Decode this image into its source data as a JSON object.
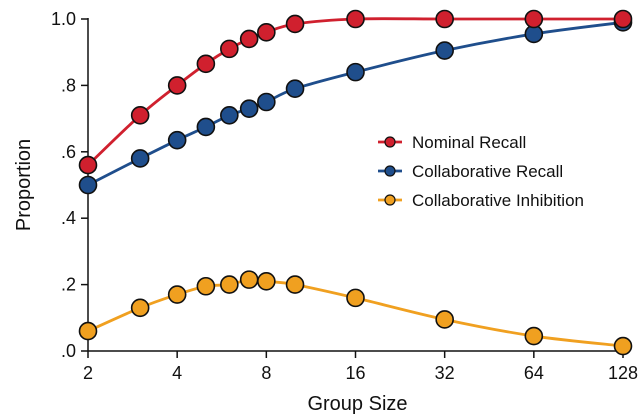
{
  "chart_data": {
    "type": "line",
    "xlabel": "Group Size",
    "ylabel": "Proportion",
    "x_scale": "log2",
    "xlim": [
      2,
      128
    ],
    "ylim": [
      0,
      1
    ],
    "x_ticks": [
      2,
      4,
      8,
      16,
      32,
      64,
      128
    ],
    "x_tick_labels": [
      "2",
      "4",
      "8",
      "16",
      "32",
      "64",
      "128"
    ],
    "y_ticks": [
      0,
      0.2,
      0.4,
      0.6,
      0.8,
      1.0
    ],
    "y_tick_labels": [
      ".0",
      ".2",
      ".4",
      ".6",
      ".8",
      "1.0"
    ],
    "grid": false,
    "legend_position": "center-right",
    "series": [
      {
        "name": "Nominal Recall",
        "color": "#d0202e",
        "marker_fill": "#d0202e",
        "x": [
          2,
          3,
          4,
          5,
          6,
          7,
          8,
          10,
          16,
          32,
          64,
          128
        ],
        "y": [
          0.56,
          0.71,
          0.8,
          0.865,
          0.91,
          0.94,
          0.96,
          0.985,
          1.0,
          1.0,
          1.0,
          1.0
        ]
      },
      {
        "name": "Collaborative Recall",
        "color": "#1f4e8c",
        "marker_fill": "#1f4e8c",
        "x": [
          2,
          3,
          4,
          5,
          6,
          7,
          8,
          10,
          16,
          32,
          64,
          128
        ],
        "y": [
          0.5,
          0.58,
          0.635,
          0.675,
          0.71,
          0.73,
          0.75,
          0.79,
          0.84,
          0.905,
          0.955,
          0.99
        ]
      },
      {
        "name": "Collaborative Inhibition",
        "color": "#f0a020",
        "marker_fill": "#f0a020",
        "x": [
          2,
          3,
          4,
          5,
          6,
          7,
          8,
          10,
          16,
          32,
          64,
          128
        ],
        "y": [
          0.06,
          0.13,
          0.17,
          0.195,
          0.2,
          0.215,
          0.21,
          0.2,
          0.16,
          0.095,
          0.045,
          0.015
        ]
      }
    ]
  }
}
